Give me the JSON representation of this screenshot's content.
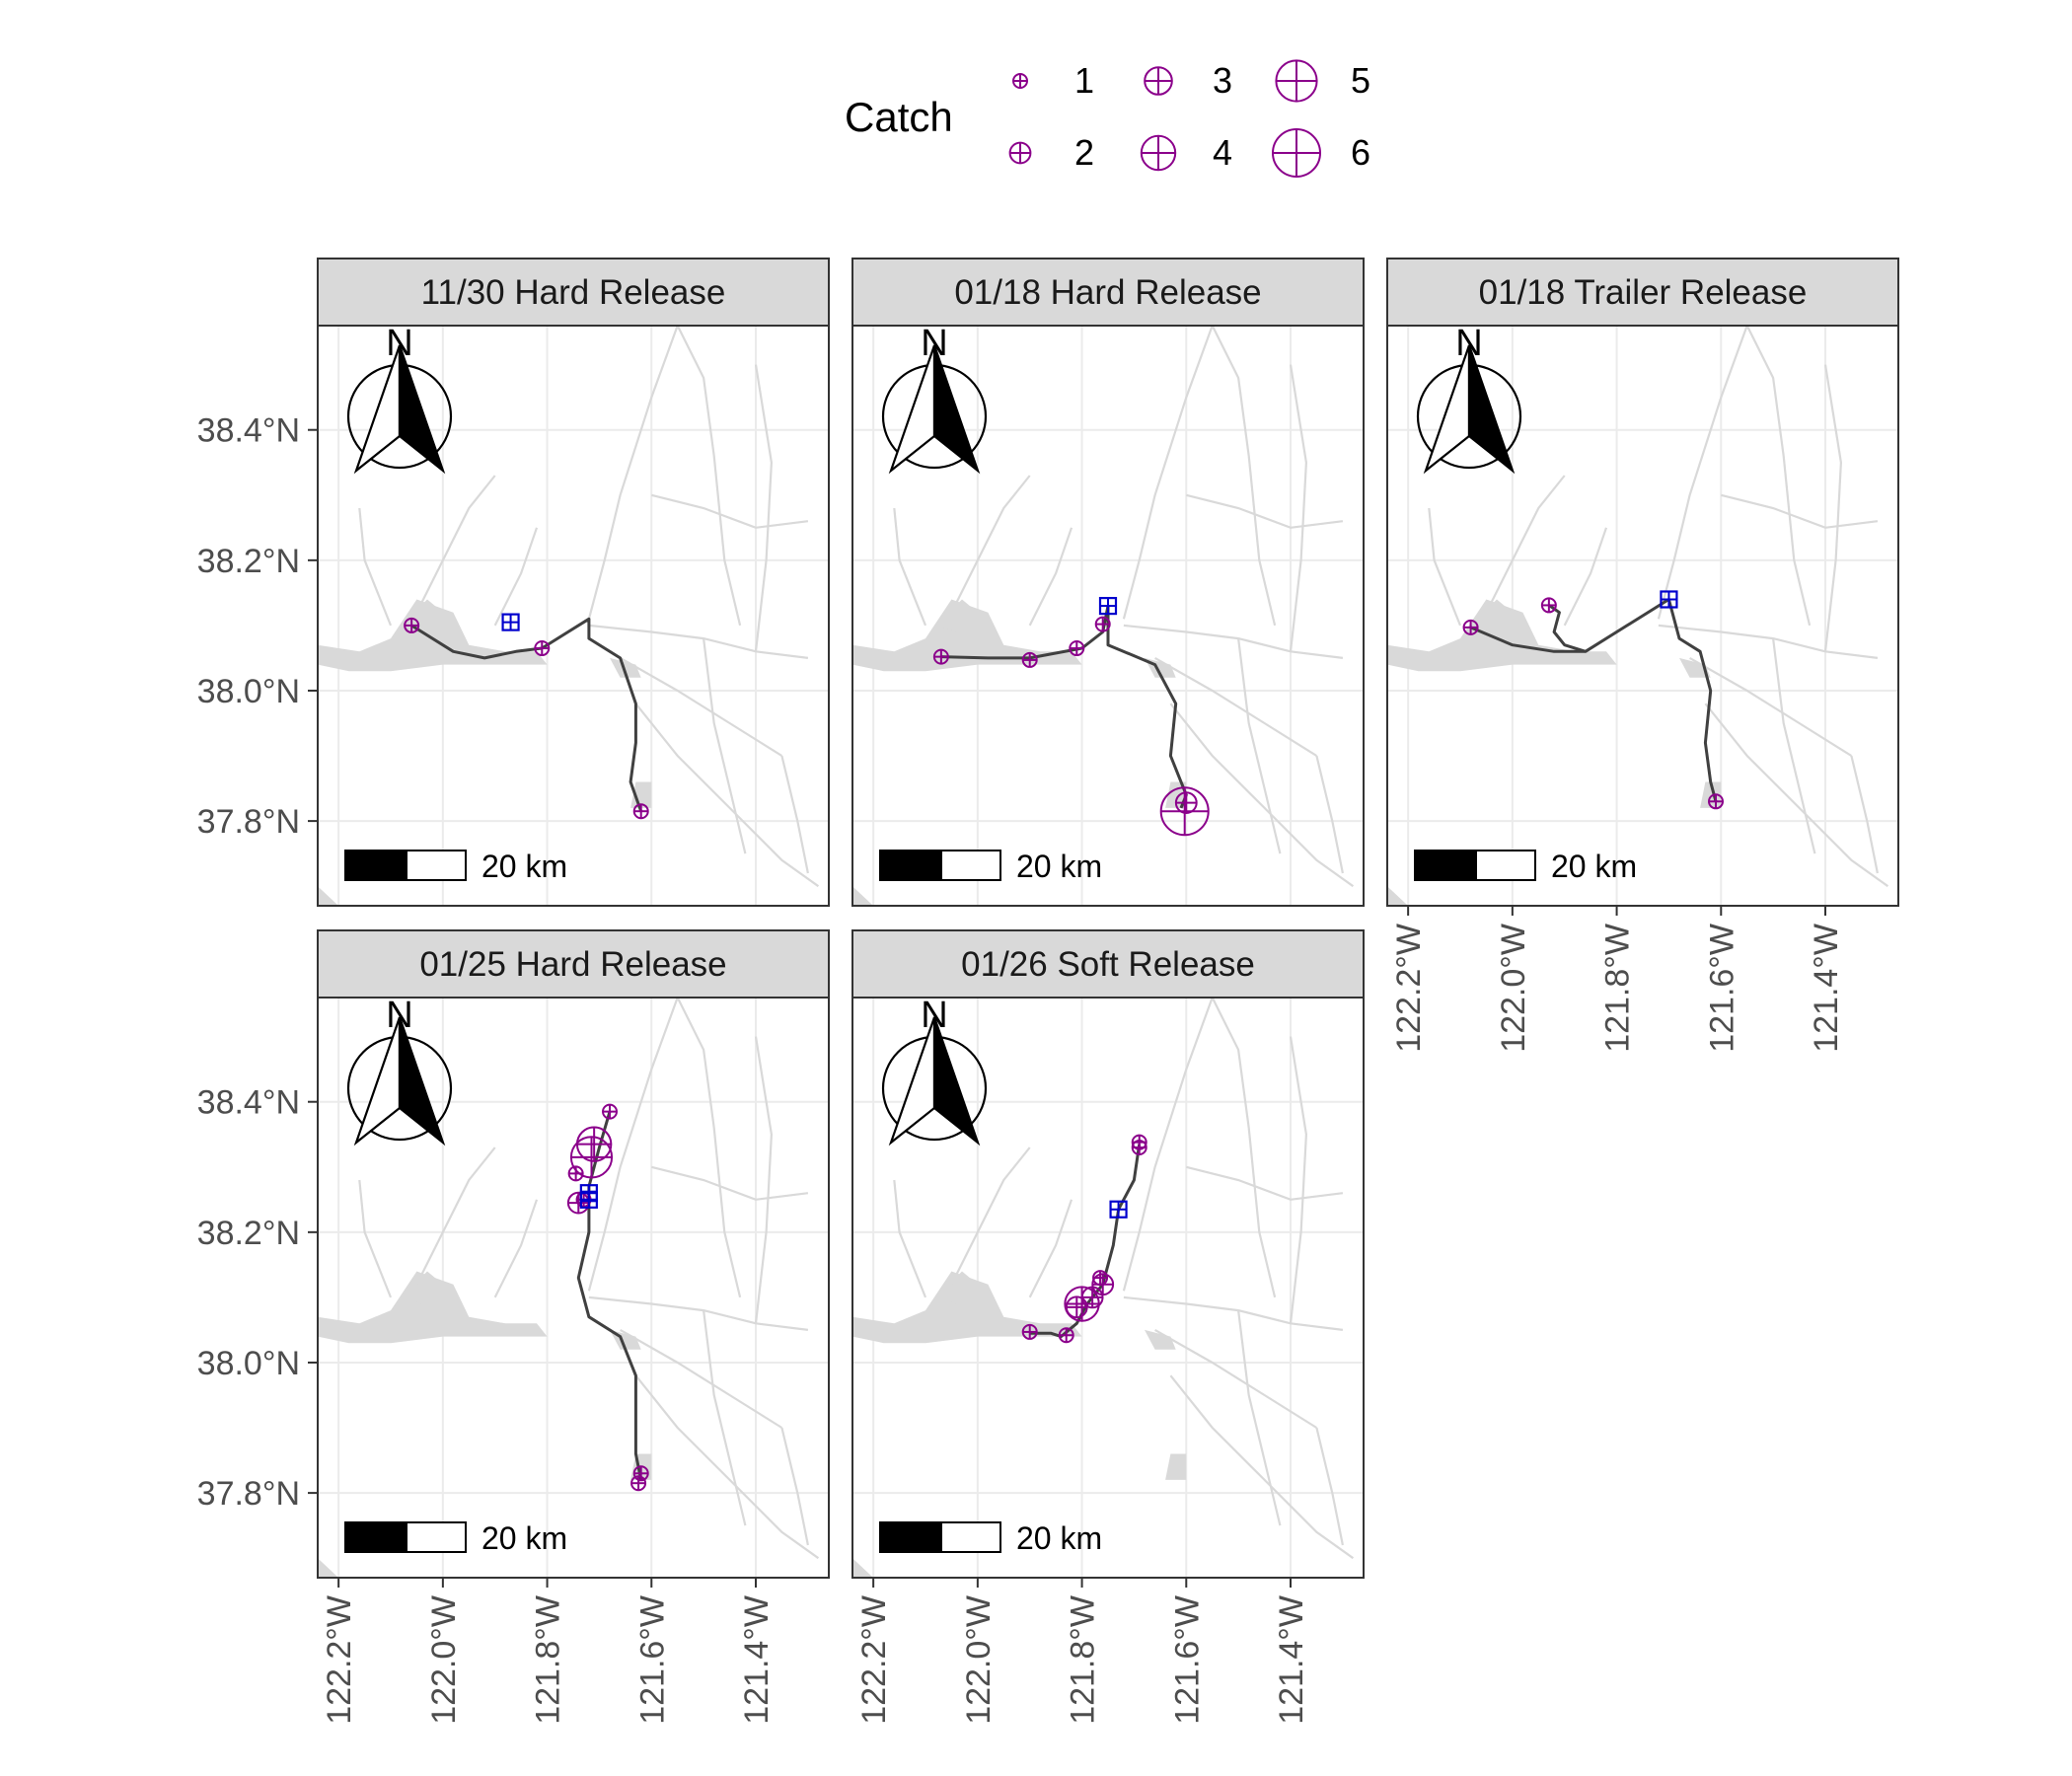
{
  "legend": {
    "title": "Catch",
    "items": [
      {
        "label": "1",
        "value": 1
      },
      {
        "label": "2",
        "value": 2
      },
      {
        "label": "3",
        "value": 3
      },
      {
        "label": "4",
        "value": 4
      },
      {
        "label": "5",
        "value": 5
      },
      {
        "label": "6",
        "value": 6
      }
    ]
  },
  "colors": {
    "catch_marker": "#8B008B",
    "release_marker": "#0000CD",
    "track": "#404040",
    "water": "#D9D9D9",
    "grid": "#EBEBEB",
    "strip_fill": "#D9D9D9",
    "panel_border": "#333333"
  },
  "axes": {
    "lat_ticks": [
      "38.4°N",
      "38.2°N",
      "38.0°N",
      "37.8°N"
    ],
    "lat_values": [
      38.4,
      38.2,
      38.0,
      37.8
    ],
    "lon_ticks": [
      "122.2°W",
      "122.0°W",
      "121.8°W",
      "121.6°W",
      "121.4°W"
    ],
    "lon_values": [
      -122.2,
      -122.0,
      -121.8,
      -121.6,
      -121.4
    ],
    "lon_range": [
      -122.24,
      -121.26
    ],
    "lat_range": [
      37.67,
      38.56
    ]
  },
  "north_arrow_label": "N",
  "scale_bar_label": "20 km",
  "panels": [
    {
      "title": "11/30 Hard Release",
      "release": [
        [
          -121.87,
          38.105
        ]
      ],
      "track": [
        [
          -122.06,
          38.1
        ],
        [
          -121.98,
          38.06
        ],
        [
          -121.92,
          38.05
        ],
        [
          -121.86,
          38.06
        ],
        [
          -121.81,
          38.065
        ],
        [
          -121.76,
          38.09
        ],
        [
          -121.72,
          38.11
        ],
        [
          -121.72,
          38.08
        ],
        [
          -121.66,
          38.05
        ],
        [
          -121.63,
          37.98
        ],
        [
          -121.63,
          37.92
        ],
        [
          -121.64,
          37.86
        ],
        [
          -121.62,
          37.815
        ]
      ],
      "catches": [
        {
          "lon": -122.06,
          "lat": 38.1,
          "n": 1
        },
        {
          "lon": -121.81,
          "lat": 38.065,
          "n": 1
        },
        {
          "lon": -121.62,
          "lat": 37.815,
          "n": 1
        }
      ]
    },
    {
      "title": "01/18 Hard Release",
      "release": [
        [
          -121.75,
          38.13
        ]
      ],
      "track": [
        [
          -122.07,
          38.052
        ],
        [
          -121.98,
          38.05
        ],
        [
          -121.9,
          38.05
        ],
        [
          -121.8,
          38.065
        ],
        [
          -121.76,
          38.09
        ],
        [
          -121.75,
          38.13
        ],
        [
          -121.75,
          38.07
        ],
        [
          -121.66,
          38.04
        ],
        [
          -121.62,
          37.98
        ],
        [
          -121.63,
          37.9
        ],
        [
          -121.6,
          37.84
        ],
        [
          -121.61,
          37.82
        ]
      ],
      "catches": [
        {
          "lon": -122.07,
          "lat": 38.052,
          "n": 1
        },
        {
          "lon": -121.9,
          "lat": 38.047,
          "n": 1
        },
        {
          "lon": -121.81,
          "lat": 38.065,
          "n": 1
        },
        {
          "lon": -121.76,
          "lat": 38.102,
          "n": 1
        },
        {
          "lon": -121.6,
          "lat": 37.828,
          "n": 2
        },
        {
          "lon": -121.603,
          "lat": 37.815,
          "n": 6
        }
      ]
    },
    {
      "title": "01/18 Trailer Release",
      "release": [
        [
          -121.7,
          38.14
        ]
      ],
      "track": [
        [
          -122.08,
          38.097
        ],
        [
          -122.0,
          38.07
        ],
        [
          -121.92,
          38.06
        ],
        [
          -121.86,
          38.06
        ],
        [
          -121.78,
          38.1
        ],
        [
          -121.7,
          38.14
        ],
        [
          -121.68,
          38.08
        ],
        [
          -121.64,
          38.06
        ],
        [
          -121.62,
          38.0
        ],
        [
          -121.63,
          37.92
        ],
        [
          -121.62,
          37.86
        ],
        [
          -121.61,
          37.83
        ]
      ],
      "branch": [
        [
          -121.93,
          38.131
        ],
        [
          -121.91,
          38.12
        ],
        [
          -121.92,
          38.09
        ],
        [
          -121.9,
          38.07
        ],
        [
          -121.86,
          38.06
        ]
      ],
      "catches": [
        {
          "lon": -122.08,
          "lat": 38.097,
          "n": 1
        },
        {
          "lon": -121.93,
          "lat": 38.131,
          "n": 1
        },
        {
          "lon": -121.61,
          "lat": 37.83,
          "n": 1
        }
      ]
    },
    {
      "title": "01/25 Hard Release",
      "release": [
        [
          -121.72,
          38.26
        ],
        [
          -121.72,
          38.25
        ]
      ],
      "track": [
        [
          -121.68,
          38.385
        ],
        [
          -121.7,
          38.33
        ],
        [
          -121.72,
          38.27
        ],
        [
          -121.72,
          38.2
        ],
        [
          -121.74,
          38.13
        ],
        [
          -121.72,
          38.07
        ],
        [
          -121.66,
          38.04
        ],
        [
          -121.63,
          37.98
        ],
        [
          -121.63,
          37.92
        ],
        [
          -121.63,
          37.86
        ],
        [
          -121.62,
          37.82
        ]
      ],
      "catches": [
        {
          "lon": -121.68,
          "lat": 38.385,
          "n": 1
        },
        {
          "lon": -121.71,
          "lat": 38.335,
          "n": 4
        },
        {
          "lon": -121.715,
          "lat": 38.315,
          "n": 5
        },
        {
          "lon": -121.745,
          "lat": 38.29,
          "n": 1
        },
        {
          "lon": -121.74,
          "lat": 38.245,
          "n": 2
        },
        {
          "lon": -121.73,
          "lat": 38.25,
          "n": 1
        },
        {
          "lon": -121.62,
          "lat": 37.83,
          "n": 1
        },
        {
          "lon": -121.625,
          "lat": 37.815,
          "n": 1
        }
      ]
    },
    {
      "title": "01/26 Soft Release",
      "release": [
        [
          -121.73,
          38.235
        ]
      ],
      "track": [
        [
          -121.9,
          38.045
        ],
        [
          -121.86,
          38.045
        ],
        [
          -121.84,
          38.04
        ],
        [
          -121.81,
          38.06
        ],
        [
          -121.79,
          38.09
        ],
        [
          -121.76,
          38.12
        ],
        [
          -121.74,
          38.18
        ],
        [
          -121.73,
          38.235
        ],
        [
          -121.7,
          38.28
        ],
        [
          -121.69,
          38.335
        ]
      ],
      "catches": [
        {
          "lon": -121.9,
          "lat": 38.047,
          "n": 1
        },
        {
          "lon": -121.83,
          "lat": 38.042,
          "n": 1
        },
        {
          "lon": -121.81,
          "lat": 38.085,
          "n": 2
        },
        {
          "lon": -121.8,
          "lat": 38.09,
          "n": 4
        },
        {
          "lon": -121.78,
          "lat": 38.1,
          "n": 2
        },
        {
          "lon": -121.76,
          "lat": 38.12,
          "n": 2
        },
        {
          "lon": -121.765,
          "lat": 38.13,
          "n": 1
        },
        {
          "lon": -121.69,
          "lat": 38.33,
          "n": 1
        },
        {
          "lon": -121.69,
          "lat": 38.338,
          "n": 1
        }
      ]
    }
  ]
}
